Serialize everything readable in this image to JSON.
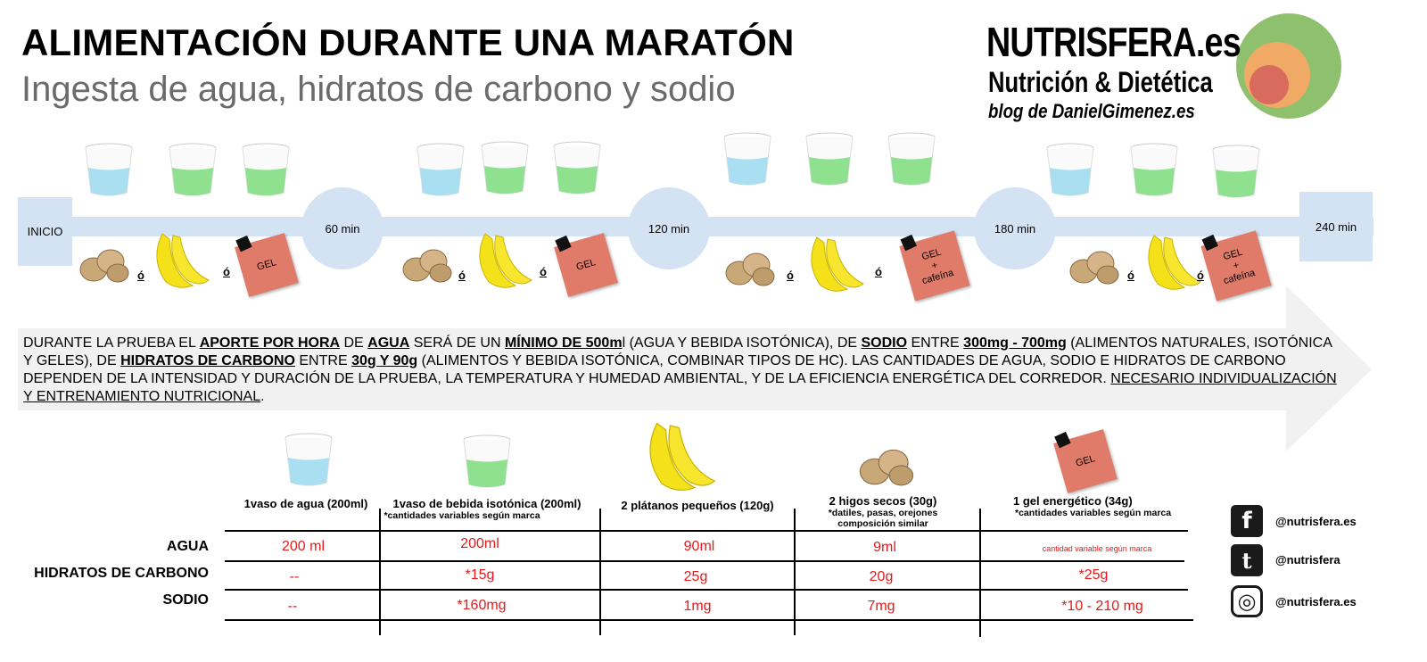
{
  "header": {
    "title": "ALIMENTACIÓN DURANTE UNA MARATÓN",
    "subtitle": "Ingesta de agua, hidratos de carbono y sodio"
  },
  "brand": {
    "name": "NUTRISFERA.es",
    "tagline": "Nutrición & Dietética",
    "blog_prefix": "blog de",
    "blog_name": "DanielGimenez",
    "blog_suffix": ".es",
    "colors": {
      "outer": "#8fc06e",
      "middle": "#f1aa66",
      "inner": "#d86a5e"
    }
  },
  "timeline": {
    "start": "INICIO",
    "stops": [
      "60 min",
      "120 min",
      "180 min"
    ],
    "end": "240 min",
    "or_label": "ó",
    "gel_label": "GEL",
    "gel_caffeine_lines": [
      "GEL",
      "+",
      "cafeína"
    ]
  },
  "info": {
    "p1": "DURANTE LA PRUEBA EL ",
    "b1": "APORTE POR HORA",
    "p2": " DE ",
    "b2": "AGUA",
    "p3": " SERÁ DE UN ",
    "b3": "MÍNIMO DE 500m",
    "p4": "l (AGUA Y BEBIDA ISOTÓNICA), DE ",
    "b4": "SODIO",
    "p5": " ENTRE ",
    "b5": "300mg - 700mg",
    "p6": " (ALIMENTOS NATURALES, ISOTÓNICA Y GELES), DE ",
    "b6": "HIDRATOS DE CARBONO",
    "p7": " ENTRE ",
    "b7": "30g Y 90g",
    "p8": " (ALIMENTOS Y BEBIDA ISOTÓNICA, COMBINAR TIPOS DE HC). LAS CANTIDADES DE AGUA, SODIO E HIDRATOS DE CARBONO DEPENDEN DE LA INTENSIDAD Y DURACIÓN DE LA PRUEBA, LA TEMPERATURA Y HUMEDAD AMBIENTAL, Y DE LA EFICIENCIA ENERGÉTICA DEL CORREDOR. ",
    "u1": "NECESARIO INDIVIDUALIZACIÓN Y ENTRENAMIENTO NUTRICIONAL",
    "p9": "."
  },
  "table": {
    "columns": [
      {
        "label": "1vaso de agua (200ml)",
        "note": ""
      },
      {
        "label": "1vaso de bebida isotónica (200ml)",
        "note": "*cantidades variables según marca"
      },
      {
        "label": "2 plátanos pequeños (120g)",
        "note": ""
      },
      {
        "label": "2 higos secos (30g)",
        "note_lines": [
          "*datiles, pasas, orejones",
          "composición similar"
        ]
      },
      {
        "label": "1 gel energético (34g)",
        "note": "*cantidades variables según marca"
      }
    ],
    "rows": [
      {
        "label": "AGUA",
        "values": [
          "200 ml",
          "200ml",
          "90ml",
          "9ml",
          "cantidad variable según marca"
        ]
      },
      {
        "label": "HIDRATOS DE CARBONO",
        "values": [
          "--",
          "*15g",
          "25g",
          "20g",
          "*25g"
        ]
      },
      {
        "label": "SODIO",
        "values": [
          "--",
          "*160mg",
          "1mg",
          "7mg",
          "*10 - 210 mg"
        ]
      }
    ]
  },
  "social": [
    {
      "icon": "facebook-icon",
      "glyph": "f",
      "handle": "@nutrisfera.es"
    },
    {
      "icon": "twitter-icon",
      "glyph": "t",
      "handle": "@nutrisfera"
    },
    {
      "icon": "instagram-icon",
      "glyph": "◎",
      "handle": "@nutrisfera.es"
    }
  ],
  "colors": {
    "timeline": "#d3e3f3",
    "water": "#a9dff0",
    "isotonic": "#8fe08f",
    "gel": "#e07b6a",
    "value_red": "#e31b1b",
    "banana": "#f5e11a",
    "fig": "#c9a878"
  }
}
